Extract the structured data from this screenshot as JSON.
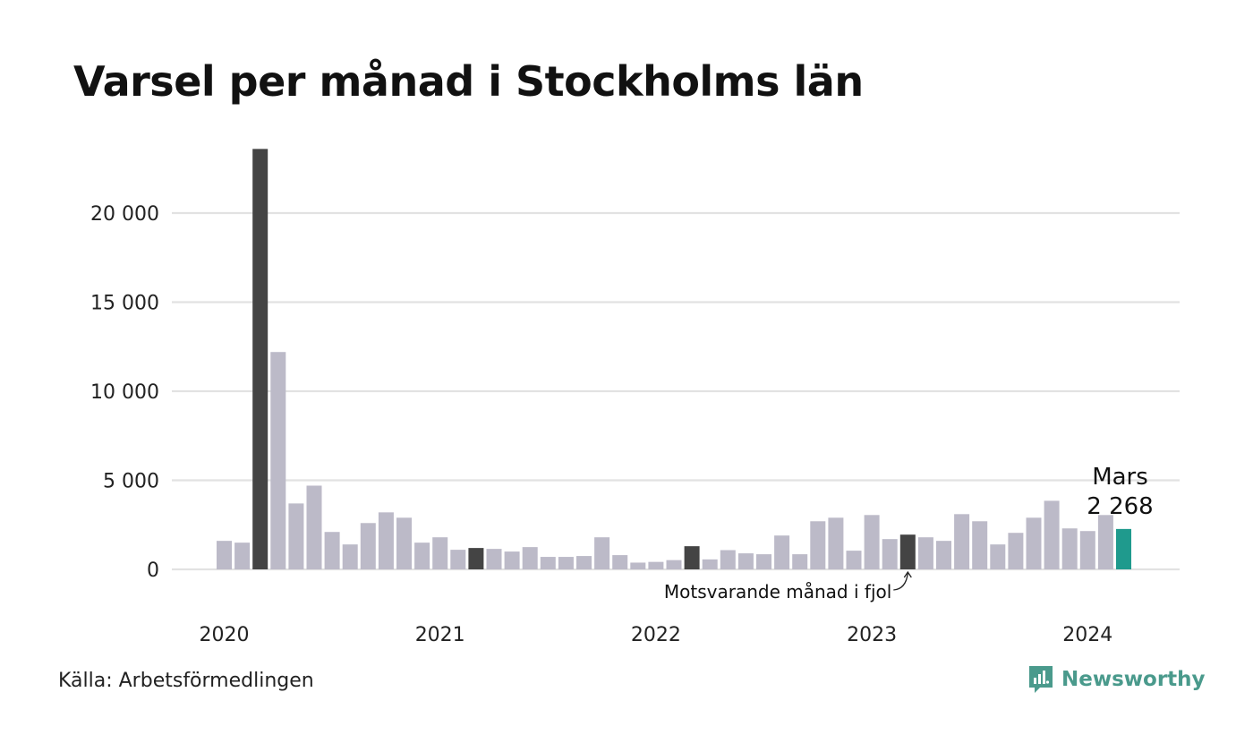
{
  "chart_data": {
    "type": "bar",
    "title": "Varsel per månad i Stockholms län",
    "xlabel": "",
    "ylabel": "",
    "ylim": [
      0,
      24000
    ],
    "yticks": [
      0,
      5000,
      10000,
      15000,
      20000
    ],
    "ytick_labels": [
      "0",
      "5 000",
      "10 000",
      "15 000",
      "20 000"
    ],
    "x_year_labels": [
      "2020",
      "2021",
      "2022",
      "2023",
      "2024"
    ],
    "grid": true,
    "categories": [
      "2020-01",
      "2020-02",
      "2020-03",
      "2020-04",
      "2020-05",
      "2020-06",
      "2020-07",
      "2020-08",
      "2020-09",
      "2020-10",
      "2020-11",
      "2020-12",
      "2021-01",
      "2021-02",
      "2021-03",
      "2021-04",
      "2021-05",
      "2021-06",
      "2021-07",
      "2021-08",
      "2021-09",
      "2021-10",
      "2021-11",
      "2021-12",
      "2022-01",
      "2022-02",
      "2022-03",
      "2022-04",
      "2022-05",
      "2022-06",
      "2022-07",
      "2022-08",
      "2022-09",
      "2022-10",
      "2022-11",
      "2022-12",
      "2023-01",
      "2023-02",
      "2023-03",
      "2023-04",
      "2023-05",
      "2023-06",
      "2023-07",
      "2023-08",
      "2023-09",
      "2023-10",
      "2023-11",
      "2023-12",
      "2024-01",
      "2024-02",
      "2024-03"
    ],
    "values": [
      1600,
      1500,
      23600,
      12200,
      3700,
      4700,
      2100,
      1400,
      2600,
      3200,
      2900,
      1500,
      1800,
      1100,
      1200,
      1150,
      1000,
      1250,
      700,
      700,
      750,
      1800,
      800,
      380,
      420,
      520,
      1300,
      560,
      1080,
      900,
      850,
      1900,
      850,
      2700,
      2900,
      1050,
      3050,
      1700,
      1950,
      1800,
      1600,
      3100,
      2700,
      1400,
      2050,
      2900,
      3850,
      2300,
      2150,
      3050,
      2268
    ],
    "highlight_months": [
      "2020-03",
      "2021-03",
      "2022-03",
      "2023-03"
    ],
    "current_month": "2024-03",
    "colors": {
      "default": "#bcbac8",
      "highlight": "#444444",
      "current": "#1f9a8d",
      "grid": "#e2e2e2"
    },
    "annotations": {
      "current_label": "Mars",
      "current_value_label": "2 268",
      "previous_year_label": "Motsvarande månad i fjol"
    }
  },
  "footer": {
    "source": "Källa: Arbetsförmedlingen",
    "logo_text": "Newsworthy",
    "logo_icon": "newsworthy-bar-chart-icon",
    "logo_color": "#4a9a8c"
  }
}
